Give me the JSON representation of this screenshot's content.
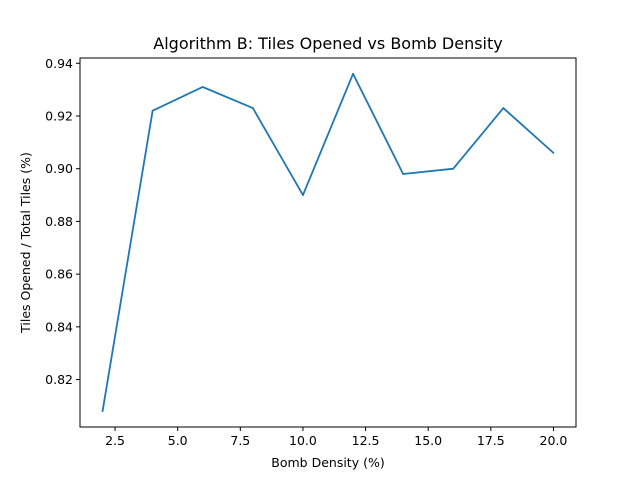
{
  "chart_data": {
    "type": "line",
    "title": "Algorithm B: Tiles Opened vs Bomb Density",
    "xlabel": "Bomb Density (%)",
    "ylabel": "Tiles Opened / Total Tiles (%)",
    "xlim": [
      1.1,
      20.9
    ],
    "ylim": [
      0.802,
      0.942
    ],
    "xticks": [
      2.5,
      5.0,
      7.5,
      10.0,
      12.5,
      15.0,
      17.5,
      20.0
    ],
    "xtick_labels": [
      "2.5",
      "5.0",
      "7.5",
      "10.0",
      "12.5",
      "15.0",
      "17.5",
      "20.0"
    ],
    "yticks": [
      0.82,
      0.84,
      0.86,
      0.88,
      0.9,
      0.92,
      0.94
    ],
    "ytick_labels": [
      "0.82",
      "0.84",
      "0.86",
      "0.88",
      "0.90",
      "0.92",
      "0.94"
    ],
    "grid": false,
    "series": [
      {
        "color": "#1f77b4",
        "x": [
          2,
          4,
          6,
          8,
          10,
          12,
          14,
          16,
          18,
          20
        ],
        "y": [
          0.808,
          0.922,
          0.931,
          0.923,
          0.89,
          0.936,
          0.898,
          0.9,
          0.923,
          0.906
        ]
      }
    ]
  }
}
